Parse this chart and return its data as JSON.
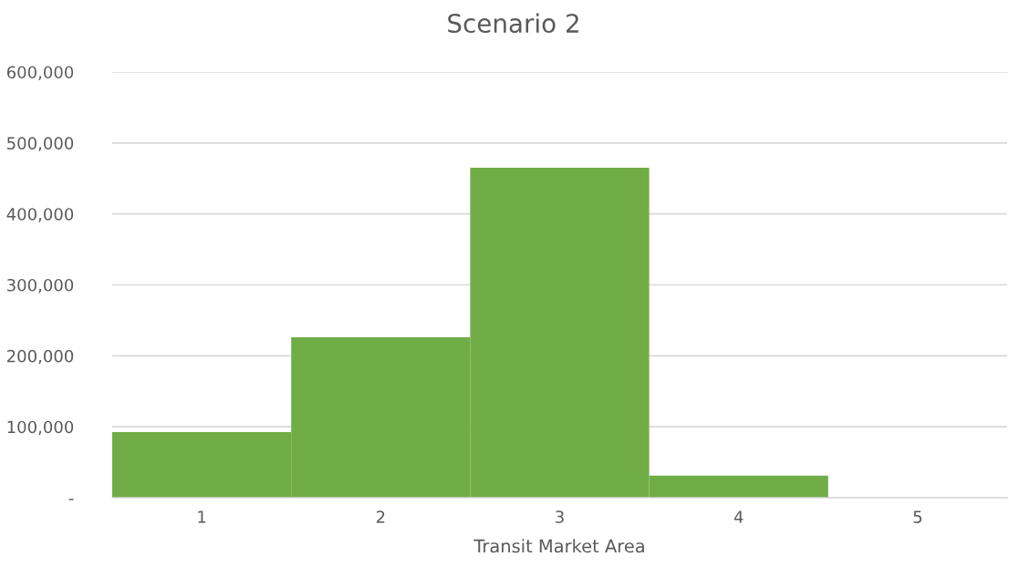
{
  "chart_data": {
    "type": "bar",
    "title": "Scenario 2",
    "xlabel": "Transit Market Area",
    "categories": [
      "1",
      "2",
      "3",
      "4",
      "5"
    ],
    "values": [
      92500,
      226000,
      465000,
      31000,
      0
    ],
    "color": "#70ad47",
    "ylim": [
      0,
      600000
    ],
    "yticks": [
      {
        "value": 0,
        "label": "-"
      },
      {
        "value": 100000,
        "label": "100,000"
      },
      {
        "value": 200000,
        "label": "200,000"
      },
      {
        "value": 300000,
        "label": "300,000"
      },
      {
        "value": 400000,
        "label": "400,000"
      },
      {
        "value": 500000,
        "label": "500,000"
      },
      {
        "value": 600000,
        "label": "600,000"
      }
    ],
    "grid": "y",
    "legend": false
  }
}
